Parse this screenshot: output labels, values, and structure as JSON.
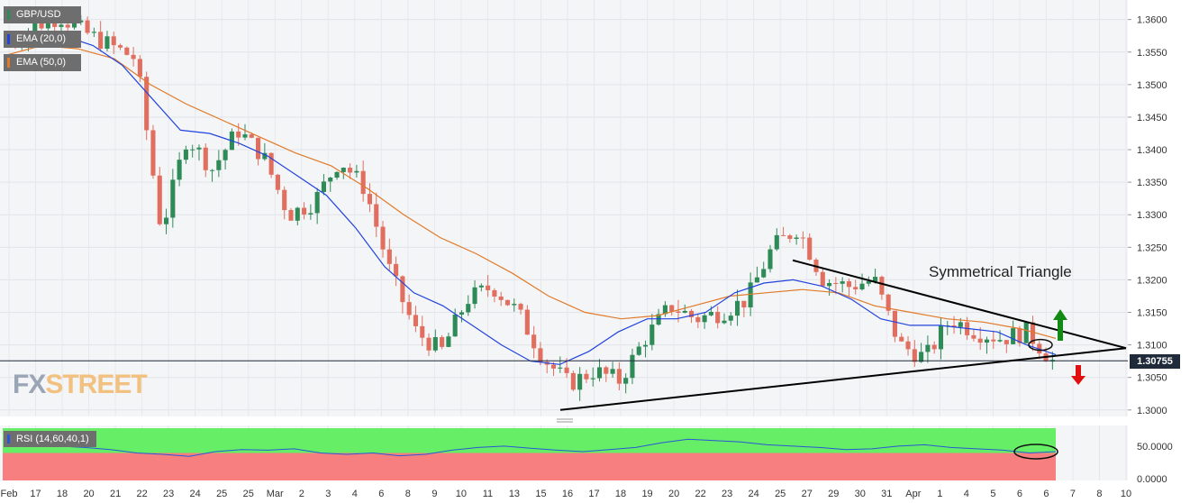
{
  "header": {
    "symbol": "GBP/USD",
    "ema20_label": "EMA (20,0)",
    "ema50_label": "EMA (50,0)"
  },
  "colors": {
    "background": "#f4f5f7",
    "up_candle": "#2e8b57",
    "down_candle": "#e06f5f",
    "ema20": "#2244dd",
    "ema50": "#e07a2a",
    "trendline": "#000000",
    "rsi_line": "#2a57d6",
    "rsi_upper_zone": "#66ee66",
    "rsi_lower_zone": "#f77f7f",
    "price_tag": "#1f2a3a",
    "arrow_up": "#138a13",
    "arrow_down": "#e01010"
  },
  "annotations": {
    "pattern_label": "Symmetrical Triangle",
    "arrow_up": "up-arrow",
    "arrow_down": "down-arrow"
  },
  "logo": {
    "part1": "FX",
    "part2": "STREET"
  },
  "last_price": "1.30755",
  "rsi": {
    "label": "RSI (14,60,40,1)",
    "tick_labels": [
      "50.0000",
      "0.0000"
    ]
  },
  "chart_data": {
    "type": "candlestick",
    "y_axis": {
      "range": [
        1.299,
        1.363
      ],
      "tick_labels": [
        "1.3600",
        "1.3550",
        "1.3500",
        "1.3450",
        "1.3400",
        "1.3350",
        "1.3300",
        "1.3250",
        "1.3200",
        "1.3150",
        "1.3100",
        "1.3050",
        "1.3000"
      ],
      "ticks": [
        1.36,
        1.355,
        1.35,
        1.345,
        1.34,
        1.335,
        1.33,
        1.325,
        1.32,
        1.315,
        1.31,
        1.305,
        1.3
      ]
    },
    "x_axis": {
      "labels": [
        "Feb",
        "17",
        "18",
        "20",
        "21",
        "22",
        "23",
        "24",
        "25",
        "25",
        "Mar",
        "2",
        "3",
        "4",
        "6",
        "8",
        "9",
        "10",
        "11",
        "13",
        "15",
        "16",
        "17",
        "18",
        "19",
        "20",
        "22",
        "23",
        "24",
        "25",
        "27",
        "29",
        "30",
        "31",
        "Apr",
        "1",
        "4",
        "5",
        "6",
        "6",
        "7",
        "8",
        "10"
      ]
    },
    "grid": true,
    "current_price": 1.30755,
    "daily_closes": [
      1.3565,
      1.359,
      1.3605,
      1.358,
      1.356,
      1.354,
      1.3275,
      1.342,
      1.337,
      1.343,
      1.339,
      1.33,
      1.332,
      1.3385,
      1.334,
      1.321,
      1.312,
      1.309,
      1.317,
      1.319,
      1.315,
      1.308,
      1.304,
      1.306,
      1.3045,
      1.311,
      1.316,
      1.314,
      1.315,
      1.317,
      1.325,
      1.328,
      1.32,
      1.319,
      1.32,
      1.31,
      1.308,
      1.314,
      1.312,
      1.311,
      1.312,
      1.3075
    ],
    "ema20": [
      1.356,
      1.357,
      1.3575,
      1.356,
      1.353,
      1.348,
      1.343,
      1.3425,
      1.341,
      1.339,
      1.336,
      1.333,
      1.328,
      1.322,
      1.318,
      1.316,
      1.313,
      1.31,
      1.3075,
      1.307,
      1.309,
      1.312,
      1.314,
      1.314,
      1.315,
      1.318,
      1.3195,
      1.32,
      1.319,
      1.317,
      1.314,
      1.313,
      1.313,
      1.3125,
      1.312,
      1.31,
      1.3085
    ],
    "ema50": [
      1.3545,
      1.356,
      1.3555,
      1.354,
      1.35,
      1.347,
      1.3445,
      1.342,
      1.3395,
      1.3375,
      1.334,
      1.33,
      1.3265,
      1.324,
      1.321,
      1.3175,
      1.315,
      1.314,
      1.3145,
      1.316,
      1.3175,
      1.318,
      1.3185,
      1.318,
      1.316,
      1.315,
      1.314,
      1.3135,
      1.3125,
      1.311
    ],
    "triangle": {
      "upper_line": [
        [
          1.323
        ],
        [
          1.3095
        ]
      ],
      "lower_line": [
        [
          1.3
        ],
        [
          1.3095
        ]
      ]
    },
    "rsi_values": [
      55,
      52,
      50,
      48,
      45,
      40,
      38,
      35,
      42,
      45,
      44,
      46,
      40,
      38,
      40,
      36,
      38,
      44,
      48,
      50,
      47,
      44,
      42,
      45,
      48,
      55,
      60,
      58,
      56,
      52,
      50,
      48,
      45,
      46,
      50,
      52,
      48,
      46,
      44,
      40,
      42
    ]
  }
}
